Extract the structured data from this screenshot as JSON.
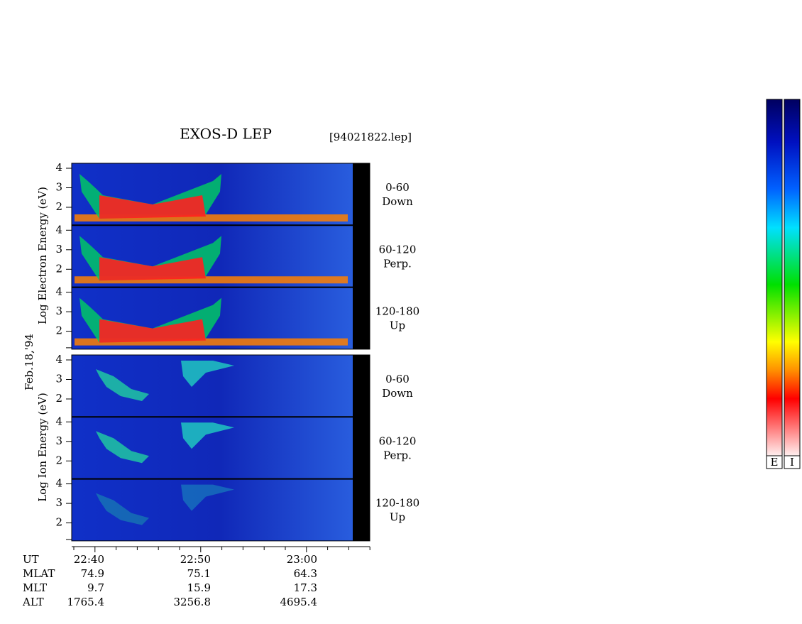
{
  "header": {
    "title": "EXOS-D LEP",
    "file": "[94021822.lep]"
  },
  "date": "Feb.18,'94",
  "blocks": [
    {
      "axis_label": "Log  Electron  Energy (eV)",
      "panels": [
        {
          "yticks": [
            "4",
            "3",
            "2"
          ],
          "label": [
            "0-60",
            "Down"
          ]
        },
        {
          "yticks": [
            "4",
            "3",
            "2"
          ],
          "label": [
            "60-120",
            "Perp."
          ]
        },
        {
          "yticks": [
            "4",
            "3",
            "2"
          ],
          "label": [
            "120-180",
            "Up"
          ]
        }
      ]
    },
    {
      "axis_label": "Log  Ion  Energy (eV)",
      "panels": [
        {
          "yticks": [
            "4",
            "3",
            "2"
          ],
          "label": [
            "0-60",
            "Down"
          ]
        },
        {
          "yticks": [
            "4",
            "3",
            "2"
          ],
          "label": [
            "60-120",
            "Perp."
          ]
        },
        {
          "yticks": [
            "4",
            "3",
            "2"
          ],
          "label": [
            "120-180",
            "Up"
          ]
        }
      ]
    }
  ],
  "ephemeris": [
    {
      "name": "UT",
      "values": [
        "22:40",
        "22:50",
        "23:00"
      ]
    },
    {
      "name": "MLAT",
      "values": [
        "74.9",
        "75.1",
        "64.3"
      ]
    },
    {
      "name": "MLT",
      "values": [
        "9.7",
        "15.9",
        "17.3"
      ]
    },
    {
      "name": "ALT",
      "values": [
        "1765.4",
        "3256.8",
        "4695.4"
      ]
    }
  ],
  "colorbars": [
    "E",
    "I"
  ]
}
